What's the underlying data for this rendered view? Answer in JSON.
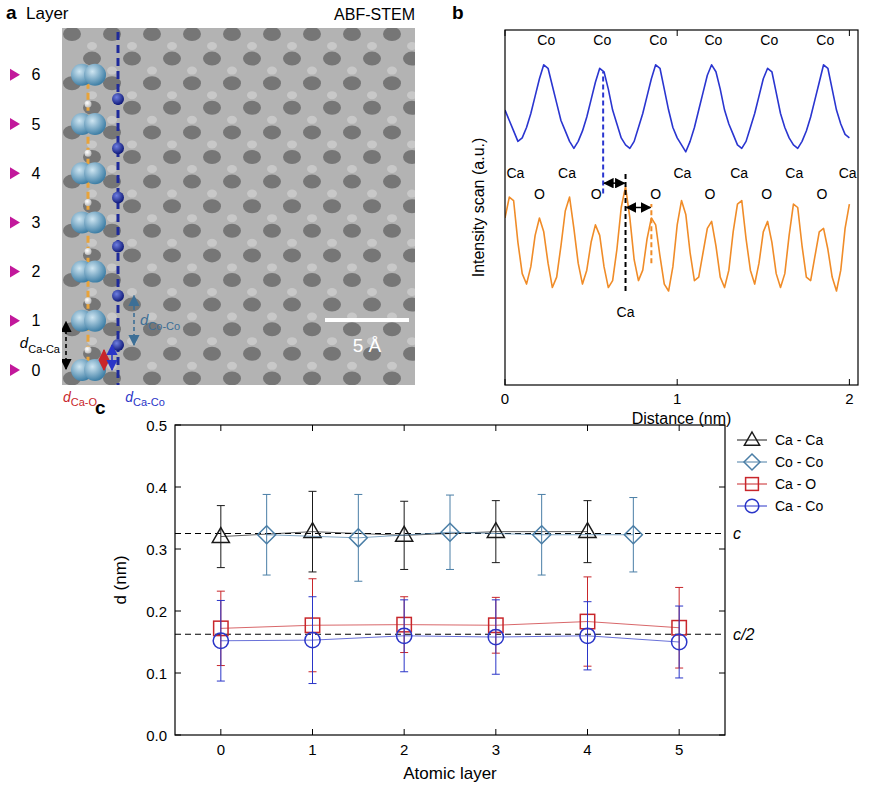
{
  "chart_data": [
    {
      "type": "image",
      "panel_label": "a",
      "title": "ABF-STEM",
      "layer_heading": "Layer",
      "layers": [
        0,
        1,
        2,
        3,
        4,
        5,
        6
      ],
      "distance_labels": [
        {
          "symbol": "d",
          "subscript": "Ca-Ca",
          "color": "#000000"
        },
        {
          "symbol": "d",
          "subscript": "Co-Co",
          "color": "#3d6f96"
        },
        {
          "symbol": "d",
          "subscript": "Ca-O",
          "color": "#c8262b"
        },
        {
          "symbol": "d",
          "subscript": "Ca-Co",
          "color": "#2a35c8"
        }
      ],
      "scale_bar": "5 Å"
    },
    {
      "type": "line",
      "panel_label": "b",
      "x_label": "Distance (nm)",
      "y_label": "Intensity scan (a.u.)",
      "x": [
        0,
        0.025,
        0.05,
        0.075,
        0.1,
        0.125,
        0.15,
        0.175,
        0.2,
        0.225,
        0.25,
        0.275,
        0.3,
        0.325,
        0.35,
        0.375,
        0.4,
        0.425,
        0.45,
        0.475,
        0.5,
        0.525,
        0.55,
        0.575,
        0.6,
        0.625,
        0.65,
        0.675,
        0.7,
        0.725,
        0.75,
        0.775,
        0.8,
        0.825,
        0.85,
        0.875,
        0.9,
        0.925,
        0.95,
        0.975,
        1,
        1.025,
        1.05,
        1.075,
        1.1,
        1.125,
        1.15,
        1.175,
        1.2,
        1.225,
        1.25,
        1.275,
        1.3,
        1.325,
        1.35,
        1.375,
        1.4,
        1.425,
        1.45,
        1.475,
        1.5,
        1.525,
        1.55,
        1.575,
        1.6,
        1.625,
        1.65,
        1.675,
        1.7,
        1.725,
        1.75,
        1.775,
        1.8,
        1.825,
        1.85,
        1.875,
        1.9,
        1.925,
        1.95,
        1.975,
        2
      ],
      "xlim": [
        0,
        2.05
      ],
      "xticks": [
        0,
        1,
        2
      ],
      "ylim": [
        -0.5,
        9.7
      ],
      "tick_labels": "x",
      "series": [
        {
          "color": "#2a35d0",
          "values": [
            7.4,
            7.1,
            6.8,
            6.5,
            6.6,
            6.9,
            7.3,
            7.8,
            8.3,
            8.7,
            8.6,
            8.1,
            7.6,
            7.1,
            6.8,
            6.5,
            6.3,
            6.5,
            6.8,
            7.2,
            7.7,
            8.2,
            8.6,
            8.5,
            8.0,
            7.4,
            7.0,
            6.6,
            6.4,
            6.3,
            6.5,
            6.9,
            7.3,
            7.8,
            8.3,
            8.7,
            8.6,
            8.0,
            7.4,
            6.9,
            6.6,
            6.4,
            6.2,
            6.5,
            6.9,
            7.4,
            7.9,
            8.4,
            8.7,
            8.5,
            8.0,
            7.4,
            7.0,
            6.7,
            6.4,
            6.3,
            6.5,
            6.9,
            7.3,
            7.8,
            8.3,
            8.6,
            8.5,
            7.9,
            7.3,
            6.9,
            6.6,
            6.4,
            6.3,
            6.5,
            6.8,
            7.2,
            7.7,
            8.2,
            8.7,
            8.6,
            8.0,
            7.4,
            7.0,
            6.7,
            6.6
          ]
        },
        {
          "color": "#f08c28",
          "values": [
            4.3,
            4.9,
            4.8,
            3.6,
            2.7,
            2.4,
            2.9,
            3.8,
            4.3,
            3.9,
            3.0,
            2.3,
            2.6,
            3.5,
            4.5,
            4.9,
            4.0,
            3.0,
            2.4,
            2.8,
            3.6,
            4.1,
            3.8,
            2.9,
            2.3,
            2.5,
            3.4,
            4.6,
            5.2,
            4.3,
            3.1,
            2.5,
            2.8,
            3.7,
            4.3,
            4.1,
            3.2,
            2.4,
            2.2,
            2.9,
            4.1,
            4.8,
            4.4,
            3.3,
            2.5,
            2.6,
            3.3,
            4.0,
            4.2,
            3.5,
            2.6,
            2.3,
            2.8,
            3.9,
            4.7,
            4.8,
            3.7,
            2.8,
            2.4,
            3.0,
            3.9,
            4.2,
            3.6,
            2.7,
            2.3,
            2.7,
            3.8,
            4.7,
            4.6,
            3.5,
            2.6,
            2.5,
            3.2,
            3.9,
            4.0,
            3.4,
            2.6,
            2.2,
            2.8,
            4.0,
            4.7
          ]
        }
      ],
      "annotations": [
        {
          "text": "Co",
          "x": 0.24,
          "y": 9.4
        },
        {
          "text": "Co",
          "x": 0.565,
          "y": 9.4
        },
        {
          "text": "Co",
          "x": 0.89,
          "y": 9.4
        },
        {
          "text": "Co",
          "x": 1.21,
          "y": 9.4
        },
        {
          "text": "Co",
          "x": 1.535,
          "y": 9.4
        },
        {
          "text": "Co",
          "x": 1.86,
          "y": 9.4
        },
        {
          "text": "Ca",
          "x": 0.06,
          "y": 5.6
        },
        {
          "text": "Ca",
          "x": 0.36,
          "y": 5.6
        },
        {
          "text": "Ca",
          "x": 1.03,
          "y": 5.6
        },
        {
          "text": "Ca",
          "x": 1.36,
          "y": 5.6
        },
        {
          "text": "Ca",
          "x": 1.68,
          "y": 5.6
        },
        {
          "text": "Ca",
          "x": 1.99,
          "y": 5.6
        },
        {
          "text": "O",
          "x": 0.2,
          "y": 5.0
        },
        {
          "text": "O",
          "x": 0.53,
          "y": 5.0
        },
        {
          "text": "O",
          "x": 0.875,
          "y": 5.0
        },
        {
          "text": "O",
          "x": 1.19,
          "y": 5.0
        },
        {
          "text": "O",
          "x": 1.52,
          "y": 5.0
        },
        {
          "text": "O",
          "x": 1.84,
          "y": 5.0
        },
        {
          "text": "Ca",
          "x": 0.7,
          "y": 1.6
        }
      ],
      "guides": [
        {
          "x": 0.57,
          "y": [
            5.0,
            8.5
          ],
          "color": "#2a35d0"
        },
        {
          "x": 0.7,
          "y": [
            2.2,
            5.6
          ],
          "color": "#000000"
        },
        {
          "x": 0.85,
          "y": [
            3.0,
            4.7
          ],
          "color": "#f08c28"
        }
      ],
      "arrows": [
        {
          "x": [
            0.57,
            0.7
          ],
          "y": 5.3
        },
        {
          "x": [
            0.7,
            0.85
          ],
          "y": 4.6
        }
      ]
    },
    {
      "type": "scatter",
      "panel_label": "c",
      "x_label": "Atomic layer",
      "y_label": "d (nm)",
      "xlim": [
        -0.5,
        5.5
      ],
      "xticks": [
        0,
        1,
        2,
        3,
        4,
        5
      ],
      "ylim": [
        0,
        0.5
      ],
      "yticks": [
        {
          "value": 0,
          "label": "0.0"
        },
        {
          "value": 0.1,
          "label": "0.1"
        },
        {
          "value": 0.2,
          "label": "0.2"
        },
        {
          "value": 0.3,
          "label": "0.3"
        },
        {
          "value": 0.4,
          "label": "0.4"
        },
        {
          "value": 0.5,
          "label": "0.5"
        }
      ],
      "legend": "right",
      "reference_lines": [
        {
          "value": 0.325,
          "label": "c"
        },
        {
          "value": 0.1625,
          "label": "c/2"
        }
      ],
      "series": [
        {
          "name": "Ca - Ca",
          "color": "#1a1a1a",
          "marker": "triangle",
          "line_style": "solid",
          "x": [
            0,
            1,
            2,
            3,
            4
          ],
          "values": [
            0.32,
            0.328,
            0.322,
            0.328,
            0.328
          ],
          "errors": [
            0.05,
            0.065,
            0.055,
            0.05,
            0.05
          ]
        },
        {
          "name": "Co - Co",
          "color": "#4a7ea6",
          "marker": "diamond",
          "line_style": "solid",
          "x": [
            0.5,
            1.5,
            2.5,
            3.5,
            4.5
          ],
          "values": [
            0.323,
            0.318,
            0.327,
            0.323,
            0.323
          ],
          "errors": [
            0.065,
            0.07,
            0.06,
            0.065,
            0.06
          ]
        },
        {
          "name": "Ca - O",
          "color": "#c8262b",
          "marker": "square",
          "line_style": "solid",
          "x": [
            0,
            1,
            2,
            3,
            4,
            5
          ],
          "values": [
            0.172,
            0.177,
            0.178,
            0.177,
            0.183,
            0.173
          ],
          "errors": [
            0.06,
            0.075,
            0.045,
            0.045,
            0.072,
            0.065
          ]
        },
        {
          "name": "Ca - Co",
          "color": "#2a35c8",
          "marker": "circle",
          "line_style": "solid",
          "x": [
            0,
            1,
            2,
            3,
            4,
            5
          ],
          "values": [
            0.152,
            0.153,
            0.16,
            0.158,
            0.16,
            0.15
          ],
          "errors": [
            0.065,
            0.07,
            0.058,
            0.06,
            0.055,
            0.058
          ]
        }
      ]
    }
  ]
}
